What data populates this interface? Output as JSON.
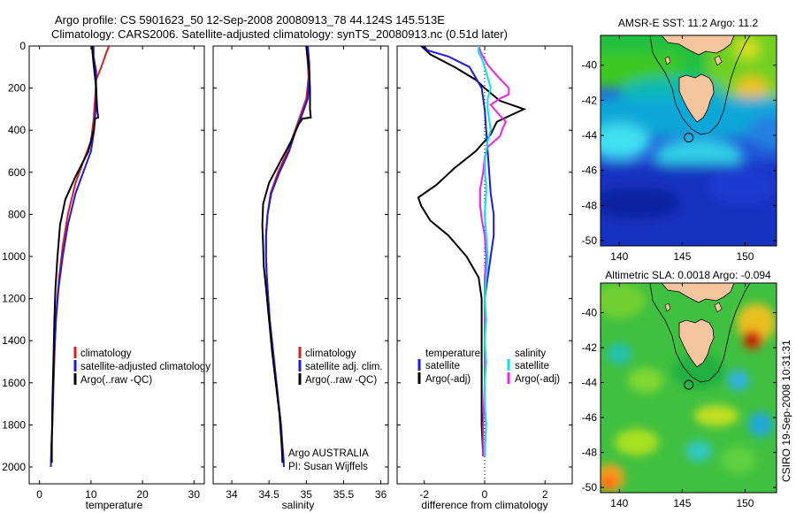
{
  "header": {
    "line1": "Argo profile: CS 5901623_50 12-Sep-2008 20080913_78 44.124S 145.513E",
    "line2": "Climatology: CARS2006. Satellite-adjusted climatology: synTS_20080913.nc (0.51d later)"
  },
  "footer_note": "CSIRO 19-Sep-2008 10:31:31",
  "colors": {
    "climatology": "#e31a1c",
    "satellite": "#1a1aee",
    "argo": "#000000",
    "satellite_salinity": "#00e5ee",
    "argo_salinity": "#ee22ee"
  },
  "chart_data": [
    {
      "type": "line",
      "xlabel": "temperature",
      "xticks": [
        0,
        10,
        20,
        30
      ],
      "yticks": [
        0,
        200,
        400,
        600,
        800,
        1000,
        1200,
        1400,
        1600,
        1800,
        2000
      ],
      "xlim": [
        -2,
        32
      ],
      "ylim": [
        2080,
        0
      ],
      "y_reversed": true,
      "legend": [
        "climatology",
        "satellite-adjusted climatology",
        "Argo(..raw -QC)"
      ],
      "series": [
        {
          "name": "climatology",
          "points": [
            [
              13.5,
              0
            ],
            [
              13,
              30
            ],
            [
              12,
              100
            ],
            [
              11,
              160
            ],
            [
              10.8,
              250
            ],
            [
              10.5,
              350
            ],
            [
              10,
              450
            ],
            [
              8.5,
              550
            ],
            [
              7,
              650
            ],
            [
              5.5,
              800
            ],
            [
              4.5,
              950
            ],
            [
              3.8,
              1100
            ],
            [
              3.3,
              1250
            ],
            [
              3,
              1400
            ],
            [
              2.8,
              1550
            ],
            [
              2.6,
              1700
            ],
            [
              2.5,
              1800
            ]
          ]
        },
        {
          "name": "satellite-adjusted climatology",
          "points": [
            [
              10.5,
              0
            ],
            [
              10.5,
              50
            ],
            [
              11,
              120
            ],
            [
              11,
              200
            ],
            [
              10.9,
              300
            ],
            [
              10.6,
              400
            ],
            [
              10,
              500
            ],
            [
              8.5,
              600
            ],
            [
              7,
              700
            ],
            [
              5.5,
              850
            ],
            [
              4.5,
              1000
            ],
            [
              3.7,
              1150
            ],
            [
              3.2,
              1300
            ],
            [
              2.9,
              1450
            ],
            [
              2.7,
              1600
            ],
            [
              2.5,
              1800
            ],
            [
              2.3,
              1900
            ],
            [
              2.2,
              2000
            ]
          ]
        },
        {
          "name": "Argo(..raw -QC)",
          "points": [
            [
              10.2,
              0
            ],
            [
              10.4,
              60
            ],
            [
              10.8,
              150
            ],
            [
              11,
              200
            ],
            [
              11.2,
              300
            ],
            [
              11.4,
              340
            ],
            [
              10.8,
              345
            ],
            [
              10.5,
              400
            ],
            [
              9.5,
              500
            ],
            [
              7,
              620
            ],
            [
              5,
              730
            ],
            [
              4,
              850
            ],
            [
              3.5,
              1000
            ],
            [
              3.1,
              1150
            ],
            [
              2.9,
              1300
            ],
            [
              2.7,
              1500
            ],
            [
              2.5,
              1700
            ],
            [
              2.4,
              1900
            ],
            [
              2.4,
              1980
            ]
          ]
        }
      ]
    },
    {
      "type": "line",
      "xlabel": "salinity",
      "xticks": [
        34,
        34.5,
        35,
        35.5,
        36
      ],
      "yticks": [],
      "xlim": [
        33.75,
        36.1
      ],
      "ylim": [
        2080,
        0
      ],
      "y_reversed": true,
      "legend": [
        "climatology",
        "satellite adj. clim.",
        "Argo(..raw -QC)"
      ],
      "annotations": [
        "Argo AUSTRALIA",
        "PI: Susan Wijffels"
      ],
      "series": [
        {
          "name": "climatology",
          "points": [
            [
              35,
              0
            ],
            [
              35.02,
              80
            ],
            [
              35.03,
              150
            ],
            [
              35,
              250
            ],
            [
              34.93,
              320
            ],
            [
              34.85,
              400
            ],
            [
              34.75,
              500
            ],
            [
              34.62,
              600
            ],
            [
              34.52,
              700
            ],
            [
              34.48,
              800
            ],
            [
              34.46,
              900
            ],
            [
              34.46,
              1000
            ],
            [
              34.47,
              1100
            ],
            [
              34.49,
              1200
            ],
            [
              34.51,
              1300
            ],
            [
              34.53,
              1400
            ],
            [
              34.56,
              1500
            ],
            [
              34.6,
              1600
            ],
            [
              34.63,
              1700
            ],
            [
              34.66,
              1800
            ],
            [
              34.68,
              1900
            ],
            [
              34.7,
              1980
            ]
          ]
        },
        {
          "name": "satellite adj. clim.",
          "points": [
            [
              35.02,
              0
            ],
            [
              35.04,
              80
            ],
            [
              35.04,
              150
            ],
            [
              35.02,
              250
            ],
            [
              34.95,
              320
            ],
            [
              34.86,
              400
            ],
            [
              34.77,
              500
            ],
            [
              34.64,
              600
            ],
            [
              34.53,
              700
            ],
            [
              34.48,
              800
            ],
            [
              34.46,
              900
            ],
            [
              34.46,
              1000
            ],
            [
              34.47,
              1100
            ],
            [
              34.49,
              1200
            ],
            [
              34.51,
              1300
            ],
            [
              34.54,
              1400
            ],
            [
              34.57,
              1500
            ],
            [
              34.6,
              1600
            ],
            [
              34.63,
              1700
            ],
            [
              34.66,
              1800
            ],
            [
              34.68,
              1900
            ],
            [
              34.7,
              2000
            ]
          ]
        },
        {
          "name": "Argo(..raw -QC)",
          "points": [
            [
              35,
              0
            ],
            [
              35.02,
              60
            ],
            [
              35.04,
              120
            ],
            [
              35.05,
              200
            ],
            [
              35.05,
              300
            ],
            [
              35.06,
              340
            ],
            [
              34.95,
              345
            ],
            [
              34.9,
              370
            ],
            [
              34.8,
              450
            ],
            [
              34.65,
              550
            ],
            [
              34.5,
              650
            ],
            [
              34.42,
              750
            ],
            [
              34.41,
              850
            ],
            [
              34.42,
              950
            ],
            [
              34.43,
              1050
            ],
            [
              34.46,
              1150
            ],
            [
              34.5,
              1300
            ],
            [
              34.54,
              1450
            ],
            [
              34.59,
              1600
            ],
            [
              34.64,
              1750
            ],
            [
              34.67,
              1900
            ],
            [
              34.68,
              1980
            ]
          ]
        }
      ]
    },
    {
      "type": "line",
      "xlabel": "difference from climatology",
      "xticks": [
        -2,
        0,
        2
      ],
      "yticks": [],
      "xlim": [
        -2.9,
        2.9
      ],
      "ylim": [
        2080,
        0
      ],
      "y_reversed": true,
      "legend": [
        "temperature",
        "satellite",
        "Argo(-adj)",
        "salinity",
        "satellite",
        "Argo(-adj)"
      ],
      "series": [
        {
          "name": "satellite",
          "points": [
            [
              -2,
              0
            ],
            [
              -1.9,
              20
            ],
            [
              -1.2,
              50
            ],
            [
              -0.5,
              100
            ],
            [
              -0.1,
              200
            ],
            [
              0,
              300
            ],
            [
              0.05,
              400
            ],
            [
              0.1,
              500
            ],
            [
              0.15,
              600
            ],
            [
              0.2,
              700
            ],
            [
              0.3,
              800
            ],
            [
              0.3,
              900
            ],
            [
              0.2,
              1000
            ],
            [
              0.1,
              1100
            ],
            [
              0,
              1200
            ],
            [
              0,
              1300
            ],
            [
              0,
              1400
            ],
            [
              0,
              1500
            ],
            [
              0,
              1600
            ],
            [
              0,
              1700
            ],
            [
              0.05,
              1800
            ]
          ]
        },
        {
          "name": "Argo(-adj)",
          "points": [
            [
              -2.1,
              0
            ],
            [
              -1.8,
              40
            ],
            [
              -1,
              100
            ],
            [
              -0.3,
              160
            ],
            [
              0,
              200
            ],
            [
              0.5,
              260
            ],
            [
              1.3,
              300
            ],
            [
              0.7,
              340
            ],
            [
              0.4,
              360
            ],
            [
              0.2,
              420
            ],
            [
              -0.3,
              500
            ],
            [
              -1,
              580
            ],
            [
              -1.6,
              660
            ],
            [
              -2.2,
              720
            ],
            [
              -2.1,
              760
            ],
            [
              -1.8,
              830
            ],
            [
              -1.2,
              900
            ],
            [
              -0.6,
              1000
            ],
            [
              -0.2,
              1100
            ],
            [
              -0.1,
              1200
            ],
            [
              -0.1,
              1400
            ],
            [
              -0.1,
              1600
            ],
            [
              -0.1,
              1800
            ],
            [
              -0.05,
              1950
            ]
          ]
        },
        {
          "name": "satellite",
          "points": [
            [
              -0.2,
              0
            ],
            [
              -0.2,
              30
            ],
            [
              -0.1,
              60
            ],
            [
              0,
              100
            ],
            [
              0.1,
              150
            ],
            [
              0.2,
              200
            ],
            [
              0.1,
              250
            ],
            [
              0.1,
              300
            ],
            [
              0.15,
              350
            ],
            [
              0.2,
              400
            ],
            [
              0.1,
              450
            ],
            [
              0.05,
              500
            ],
            [
              0,
              550
            ],
            [
              0,
              600
            ],
            [
              0.05,
              650
            ],
            [
              0.05,
              700
            ],
            [
              0,
              800
            ],
            [
              0.05,
              900
            ],
            [
              0.1,
              1000
            ],
            [
              0.05,
              1100
            ],
            [
              0,
              1200
            ],
            [
              0.05,
              1300
            ],
            [
              0,
              1400
            ],
            [
              0.05,
              1500
            ],
            [
              0,
              1600
            ],
            [
              0,
              1700
            ],
            [
              0.05,
              1800
            ],
            [
              0,
              1950
            ]
          ]
        },
        {
          "name": "Argo(-adj)",
          "points": [
            [
              -0.2,
              0
            ],
            [
              -0.1,
              40
            ],
            [
              0.1,
              90
            ],
            [
              0.4,
              140
            ],
            [
              0.8,
              200
            ],
            [
              0.8,
              230
            ],
            [
              0.5,
              250
            ],
            [
              0.2,
              280
            ],
            [
              0.5,
              330
            ],
            [
              0.7,
              360
            ],
            [
              0.6,
              390
            ],
            [
              0.5,
              430
            ],
            [
              0.1,
              480
            ],
            [
              0,
              530
            ],
            [
              -0.05,
              600
            ],
            [
              -0.15,
              680
            ],
            [
              -0.15,
              760
            ],
            [
              -0.1,
              820
            ],
            [
              0,
              900
            ],
            [
              0.05,
              1000
            ],
            [
              0,
              1100
            ],
            [
              0,
              1200
            ],
            [
              0,
              1400
            ],
            [
              0,
              1600
            ],
            [
              -0.05,
              1800
            ],
            [
              -0.05,
              1950
            ]
          ]
        }
      ]
    },
    {
      "type": "heatmap",
      "title": "AMSR-E SST: 11.2 Argo: 11.2",
      "xticks": [
        140,
        145,
        150
      ],
      "yticks": [
        -40,
        -42,
        -44,
        -46,
        -48,
        -50
      ],
      "xlim": [
        138.5,
        152.5
      ],
      "ylim": [
        -50.3,
        -38.3
      ],
      "argo_position": [
        145.513,
        -44.124
      ]
    },
    {
      "type": "heatmap",
      "title": "Altimetric SLA: 0.0018 Argo: -0.094",
      "xticks": [
        140,
        145,
        150
      ],
      "yticks": [
        -40,
        -42,
        -44,
        -46,
        -48,
        -50
      ],
      "xlim": [
        138.5,
        152.5
      ],
      "ylim": [
        -50.3,
        -38.3
      ],
      "argo_position": [
        145.513,
        -44.124
      ]
    }
  ]
}
